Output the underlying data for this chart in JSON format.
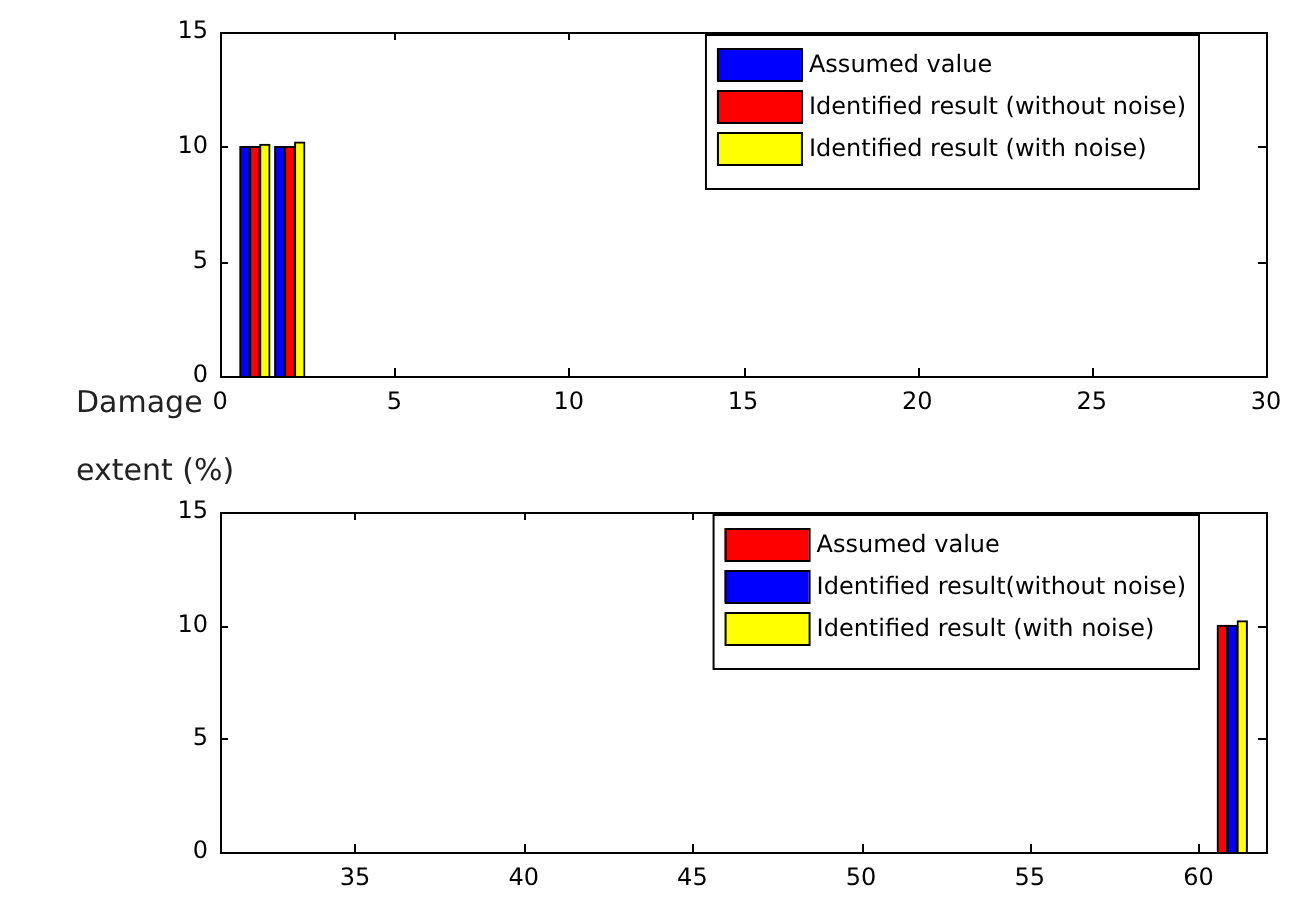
{
  "chart_data": [
    {
      "type": "bar",
      "ylabel": "Damage extent (%)",
      "x": [
        1,
        2
      ],
      "xlim": [
        0,
        30
      ],
      "xticks": [
        0,
        5,
        10,
        15,
        20,
        25,
        30
      ],
      "ylim": [
        0,
        15
      ],
      "yticks": [
        0,
        5,
        10,
        15
      ],
      "grid": false,
      "legend": "top right",
      "series": [
        {
          "name": "Assumed value",
          "color": "#0000ff",
          "values": [
            10,
            10
          ]
        },
        {
          "name": "Identified result (without noise)",
          "color": "#ff0000",
          "values": [
            10,
            10
          ]
        },
        {
          "name": "Identified result (with noise)",
          "color": "#ffff00",
          "values": [
            10.1,
            10.2
          ]
        }
      ]
    },
    {
      "type": "bar",
      "x": [
        61
      ],
      "xlim": [
        31,
        62
      ],
      "xticks": [
        35,
        40,
        45,
        50,
        55,
        60
      ],
      "ylim": [
        0,
        15
      ],
      "yticks": [
        0,
        5,
        10,
        15
      ],
      "grid": false,
      "legend": "top right",
      "series": [
        {
          "name": "Assumed value",
          "color": "#ff0000",
          "values": [
            10
          ]
        },
        {
          "name": "Identified result(without noise)",
          "color": "#0000ff",
          "values": [
            10
          ]
        },
        {
          "name": "Identified result (with noise)",
          "color": "#ffff00",
          "values": [
            10.2
          ]
        }
      ]
    }
  ]
}
